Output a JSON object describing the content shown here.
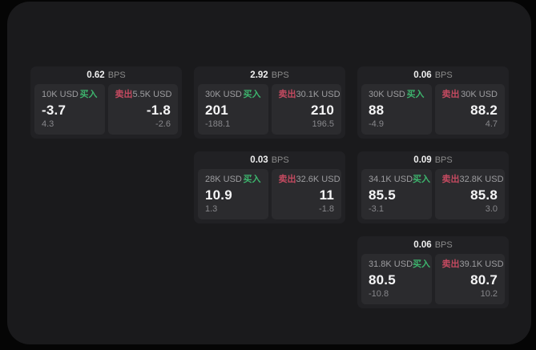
{
  "labels": {
    "bps_unit": "BPS",
    "buy": "买入",
    "sell": "卖出"
  },
  "colors": {
    "buy_green": "#3db46d",
    "sell_red": "#c44a60",
    "background": "#050505",
    "panel": "#1a1a1c",
    "card": "#212124",
    "tile": "#2b2b2e"
  },
  "cards": [
    {
      "bps": "0.62",
      "grid": {
        "row": 1,
        "col": 1
      },
      "buy": {
        "amount": "10K USD",
        "price": "-3.7",
        "delta": "4.3"
      },
      "sell": {
        "amount": "5.5K USD",
        "price": "-1.8",
        "delta": "-2.6"
      }
    },
    {
      "bps": "2.92",
      "grid": {
        "row": 1,
        "col": 2
      },
      "buy": {
        "amount": "30K USD",
        "price": "201",
        "delta": "-188.1"
      },
      "sell": {
        "amount": "30.1K USD",
        "price": "210",
        "delta": "196.5"
      }
    },
    {
      "bps": "0.06",
      "grid": {
        "row": 1,
        "col": 3
      },
      "buy": {
        "amount": "30K USD",
        "price": "88",
        "delta": "-4.9"
      },
      "sell": {
        "amount": "30K USD",
        "price": "88.2",
        "delta": "4.7"
      }
    },
    {
      "bps": "0.03",
      "grid": {
        "row": 2,
        "col": 2
      },
      "buy": {
        "amount": "28K USD",
        "price": "10.9",
        "delta": "1.3"
      },
      "sell": {
        "amount": "32.6K USD",
        "price": "11",
        "delta": "-1.8"
      }
    },
    {
      "bps": "0.09",
      "grid": {
        "row": 2,
        "col": 3
      },
      "buy": {
        "amount": "34.1K USD",
        "price": "85.5",
        "delta": "-3.1"
      },
      "sell": {
        "amount": "32.8K USD",
        "price": "85.8",
        "delta": "3.0"
      }
    },
    {
      "bps": "0.06",
      "grid": {
        "row": 3,
        "col": 3
      },
      "buy": {
        "amount": "31.8K USD",
        "price": "80.5",
        "delta": "-10.8"
      },
      "sell": {
        "amount": "39.1K USD",
        "price": "80.7",
        "delta": "10.2"
      }
    }
  ]
}
